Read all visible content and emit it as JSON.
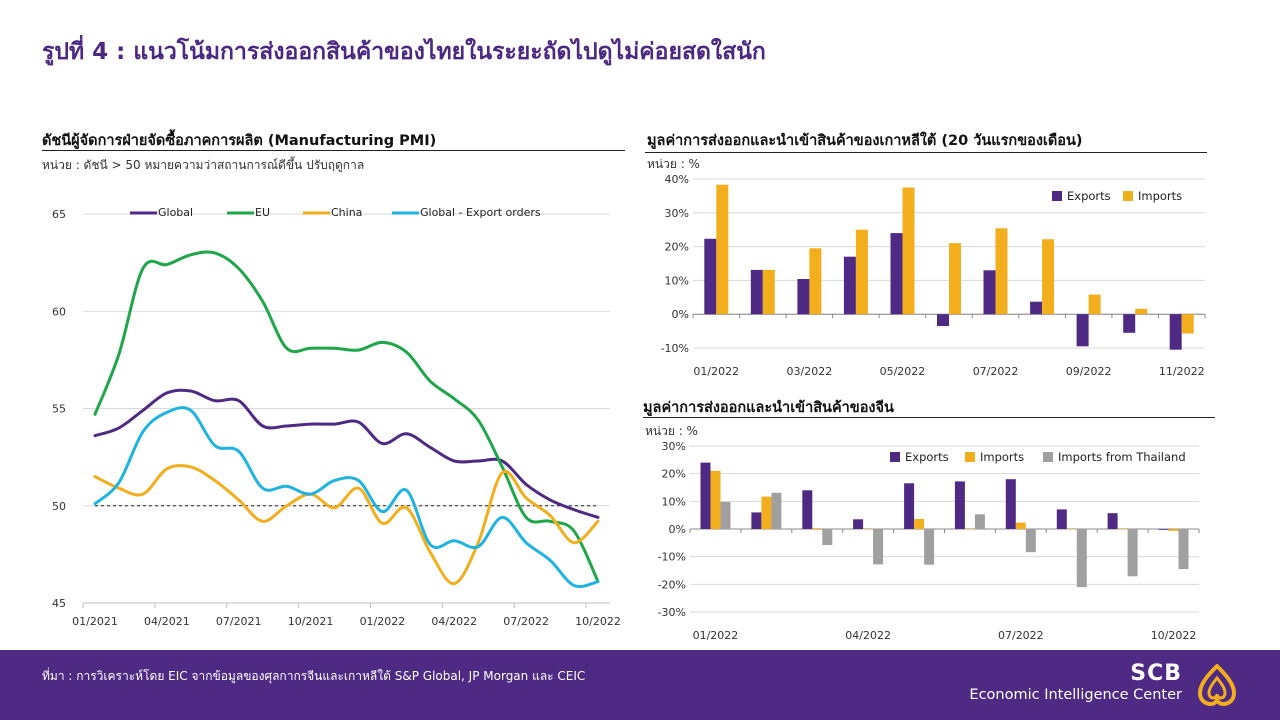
{
  "page": {
    "title": "รูปที่ 4 : แนวโน้มการส่งออกสินค้าของไทยในระยะถัดไปดูไม่ค่อยสดใสนัก",
    "source": "ที่มา : การวิเคราะห์โดย EIC จากข้อมูลของศุลกากรจีนและเกาหลีใต้ S&P Global, JP Morgan และ CEIC",
    "brand_name": "SCB",
    "brand_unit": "Economic Intelligence Center",
    "colors": {
      "purple": "#4E2A84",
      "green": "#1FA64A",
      "gold": "#F2AE1C",
      "cyan": "#1EB3E0",
      "gray": "#A0A0A0"
    }
  },
  "chart_data": [
    {
      "type": "line",
      "title": "ดัชนีผู้จัดการฝ่ายจัดซื้อภาคการผลิต (Manufacturing PMI)",
      "subtitle": "หน่วย : ดัชนี > 50 หมายความว่าสถานการณ์ดีขึ้น ปรับฤดูกาล",
      "ylim": [
        45,
        65
      ],
      "yticks": [
        45,
        50,
        55,
        60,
        65
      ],
      "reference_line": 50,
      "x_tick_labels": [
        "01/2021",
        "04/2021",
        "07/2021",
        "10/2021",
        "01/2022",
        "04/2022",
        "07/2022",
        "10/2022"
      ],
      "x_tick_index": [
        0,
        3,
        6,
        9,
        12,
        15,
        18,
        21
      ],
      "legend_position": "top",
      "grid": true,
      "series": [
        {
          "name": "Global",
          "color": "#4E2A84",
          "values": [
            53.6,
            54.0,
            54.9,
            55.8,
            55.9,
            55.4,
            55.4,
            54.1,
            54.1,
            54.2,
            54.2,
            54.3,
            53.2,
            53.7,
            53.0,
            52.3,
            52.3,
            52.3,
            51.1,
            50.3,
            49.8,
            49.4
          ]
        },
        {
          "name": "EU",
          "color": "#1FA64A",
          "values": [
            54.7,
            57.8,
            62.2,
            62.4,
            62.9,
            63.0,
            62.2,
            60.5,
            58.1,
            58.1,
            58.1,
            58.0,
            58.4,
            57.9,
            56.4,
            55.5,
            54.4,
            52.0,
            49.4,
            49.2,
            48.7,
            46.1
          ]
        },
        {
          "name": "China",
          "color": "#F2AE1C",
          "values": [
            51.5,
            50.9,
            50.6,
            51.9,
            52.0,
            51.3,
            50.3,
            49.2,
            50.0,
            50.6,
            49.9,
            50.9,
            49.1,
            49.9,
            47.6,
            46.0,
            48.1,
            51.7,
            50.4,
            49.5,
            48.1,
            49.2
          ]
        },
        {
          "name": "Global - Export orders",
          "color": "#1EB3E0",
          "values": [
            50.1,
            51.2,
            53.8,
            54.8,
            54.9,
            53.1,
            52.8,
            50.9,
            51.0,
            50.6,
            51.3,
            51.3,
            49.7,
            50.8,
            48.0,
            48.2,
            47.9,
            49.4,
            48.1,
            47.2,
            45.9,
            46.1
          ]
        }
      ]
    },
    {
      "type": "bar",
      "title": "มูลค่าการส่งออกและนำเข้าสินค้าของเกาหลีใต้ (20 วันแรกของเดือน)",
      "subtitle": "หน่วย : %",
      "ylim": [
        -10,
        40
      ],
      "yticks": [
        -10,
        0,
        10,
        20,
        30,
        40
      ],
      "ytick_labels": [
        "-10%",
        "0%",
        "10%",
        "20%",
        "30%",
        "40%"
      ],
      "categories": [
        "01/2022",
        "02/2022",
        "03/2022",
        "04/2022",
        "05/2022",
        "06/2022",
        "07/2022",
        "08/2022",
        "09/2022",
        "10/2022",
        "11/2022"
      ],
      "x_tick_labels": [
        "01/2022",
        "03/2022",
        "05/2022",
        "07/2022",
        "09/2022",
        "11/2022"
      ],
      "x_tick_index": [
        0,
        2,
        4,
        6,
        8,
        10
      ],
      "legend_position": "top-right",
      "grid": true,
      "series": [
        {
          "name": "Exports",
          "color": "#4E2A84",
          "values": [
            22.3,
            13.1,
            10.4,
            17.0,
            24.0,
            -3.5,
            13.0,
            3.7,
            -9.5,
            -5.5,
            -10.5
          ]
        },
        {
          "name": "Imports",
          "color": "#F2AE1C",
          "values": [
            38.3,
            13.1,
            19.5,
            25.0,
            37.5,
            21.0,
            25.4,
            22.2,
            5.8,
            1.6,
            -5.7
          ]
        }
      ]
    },
    {
      "type": "bar",
      "title": "มูลค่าการส่งออกและนำเข้าสินค้าของจีน",
      "subtitle": "หน่วย : %",
      "ylim": [
        -30,
        30
      ],
      "yticks": [
        -30,
        -20,
        -10,
        0,
        10,
        20,
        30
      ],
      "ytick_labels": [
        "-30%",
        "-20%",
        "-10%",
        "0%",
        "10%",
        "20%",
        "30%"
      ],
      "categories": [
        "01/2022",
        "02/2022",
        "03/2022",
        "04/2022",
        "05/2022",
        "06/2022",
        "07/2022",
        "08/2022",
        "09/2022",
        "10/2022"
      ],
      "x_tick_labels": [
        "01/2022",
        "04/2022",
        "07/2022",
        "10/2022"
      ],
      "x_tick_index": [
        0,
        3,
        6,
        9
      ],
      "legend_position": "top-right",
      "grid": true,
      "series": [
        {
          "name": "Exports",
          "color": "#4E2A84",
          "values": [
            24.0,
            6.0,
            14.0,
            3.5,
            16.5,
            17.2,
            18.0,
            7.1,
            5.7,
            -0.3
          ]
        },
        {
          "name": "Imports",
          "color": "#F2AE1C",
          "values": [
            21.0,
            11.7,
            0.3,
            0.0,
            3.6,
            0.0,
            2.3,
            0.0,
            0.0,
            -0.7
          ]
        },
        {
          "name": "Imports from Thailand",
          "color": "#A0A0A0",
          "values": [
            9.8,
            13.1,
            -5.8,
            -12.8,
            -12.9,
            5.3,
            -8.4,
            -21.0,
            -17.1,
            -14.5
          ]
        }
      ]
    }
  ]
}
